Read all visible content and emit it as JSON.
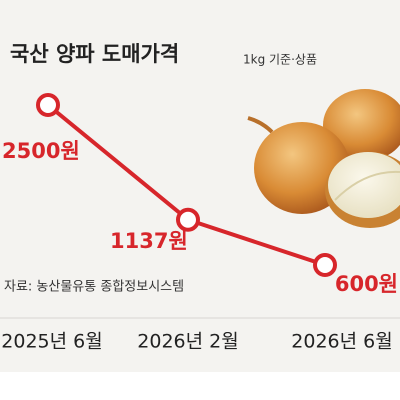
{
  "chart_data": {
    "type": "line",
    "title": "국산 양파 도매가격",
    "subtitle": "1kg 기준·상품",
    "source": "자료: 농산물유통 종합정보시스템",
    "categories": [
      "2025년 6월",
      "2026년 2월",
      "2026년 6월"
    ],
    "series": [
      {
        "values": [
          2500,
          1137,
          600
        ],
        "value_labels": [
          "2500원",
          "1137원",
          "600원"
        ],
        "color": "#d7262b"
      }
    ]
  }
}
